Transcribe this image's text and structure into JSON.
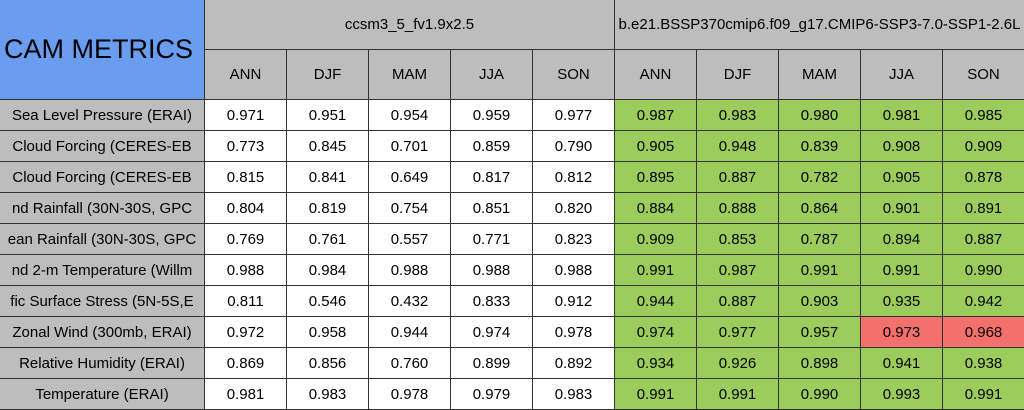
{
  "table": {
    "title": "CAM METRICS",
    "groups": [
      {
        "name": "ccsm3_5_fv1.9x2.5",
        "color": "#ffffff"
      },
      {
        "name": "b.e21.BSSP370cmip6.f09_g17.CMIP6-SSP3-7.0-SSP1-2.6L",
        "color": "#9ccc5c"
      }
    ],
    "columns": [
      "ANN",
      "DJF",
      "MAM",
      "JJA",
      "SON",
      "ANN",
      "DJF",
      "MAM",
      "JJA",
      "SON"
    ],
    "highlight_color": "#f4706c",
    "rows": [
      {
        "label": "Sea Level Pressure (ERAI)",
        "values": [
          "0.971",
          "0.951",
          "0.954",
          "0.959",
          "0.977",
          "0.987",
          "0.983",
          "0.980",
          "0.981",
          "0.985"
        ]
      },
      {
        "label": "Cloud Forcing (CERES-EB",
        "values": [
          "0.773",
          "0.845",
          "0.701",
          "0.859",
          "0.790",
          "0.905",
          "0.948",
          "0.839",
          "0.908",
          "0.909"
        ]
      },
      {
        "label": "Cloud Forcing (CERES-EB",
        "values": [
          "0.815",
          "0.841",
          "0.649",
          "0.817",
          "0.812",
          "0.895",
          "0.887",
          "0.782",
          "0.905",
          "0.878"
        ]
      },
      {
        "label": "nd Rainfall (30N-30S, GPC",
        "values": [
          "0.804",
          "0.819",
          "0.754",
          "0.851",
          "0.820",
          "0.884",
          "0.888",
          "0.864",
          "0.901",
          "0.891"
        ]
      },
      {
        "label": "ean Rainfall (30N-30S, GPC",
        "values": [
          "0.769",
          "0.761",
          "0.557",
          "0.771",
          "0.823",
          "0.909",
          "0.853",
          "0.787",
          "0.894",
          "0.887"
        ]
      },
      {
        "label": "nd 2-m Temperature (Willm",
        "values": [
          "0.988",
          "0.984",
          "0.988",
          "0.988",
          "0.988",
          "0.991",
          "0.987",
          "0.991",
          "0.991",
          "0.990"
        ]
      },
      {
        "label": "fic Surface Stress (5N-5S,E",
        "values": [
          "0.811",
          "0.546",
          "0.432",
          "0.833",
          "0.912",
          "0.944",
          "0.887",
          "0.903",
          "0.935",
          "0.942"
        ]
      },
      {
        "label": "Zonal Wind (300mb, ERAI)",
        "values": [
          "0.972",
          "0.958",
          "0.944",
          "0.974",
          "0.978",
          "0.974",
          "0.977",
          "0.957",
          "0.973",
          "0.968"
        ],
        "highlighted": [
          "JJA",
          "SON"
        ]
      },
      {
        "label": "Relative Humidity (ERAI)",
        "values": [
          "0.869",
          "0.856",
          "0.760",
          "0.899",
          "0.892",
          "0.934",
          "0.926",
          "0.898",
          "0.941",
          "0.938"
        ]
      },
      {
        "label": "Temperature (ERAI)",
        "values": [
          "0.981",
          "0.983",
          "0.978",
          "0.979",
          "0.983",
          "0.991",
          "0.991",
          "0.990",
          "0.993",
          "0.991"
        ]
      }
    ]
  }
}
